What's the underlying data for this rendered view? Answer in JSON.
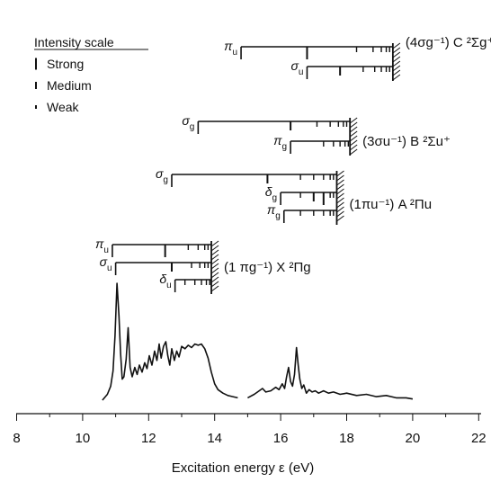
{
  "chart_data": {
    "type": "line",
    "xlabel": "Excitation energy ε (eV)",
    "ylabel": "",
    "title": "",
    "xlim": [
      8,
      22
    ],
    "x_ticks": [
      8,
      10,
      12,
      14,
      16,
      18,
      20,
      22
    ],
    "legend": {
      "title": "Intensity scale",
      "entries": [
        {
          "label": "Strong",
          "mark_height": 3
        },
        {
          "label": "Medium",
          "mark_height": 2
        },
        {
          "label": "Weak",
          "mark_height": 1
        }
      ]
    },
    "states": [
      {
        "label": "(4σg⁻¹) C ²Σg⁺",
        "limit": 19.4,
        "progressions": [
          {
            "label": "πu",
            "start": 14.8,
            "lines": [
              {
                "e": 16.8,
                "s": 3
              },
              {
                "e": 18.3,
                "s": 1
              },
              {
                "e": 18.8,
                "s": 1
              },
              {
                "e": 19.05,
                "s": 1
              },
              {
                "e": 19.2,
                "s": 1
              },
              {
                "e": 19.3,
                "s": 1
              }
            ]
          },
          {
            "label": "σu",
            "start": 16.8,
            "lines": [
              {
                "e": 17.8,
                "s": 2
              },
              {
                "e": 18.5,
                "s": 1
              },
              {
                "e": 18.85,
                "s": 1
              },
              {
                "e": 19.05,
                "s": 1
              },
              {
                "e": 19.2,
                "s": 1
              },
              {
                "e": 19.3,
                "s": 1
              }
            ]
          }
        ]
      },
      {
        "label": "(3σu⁻¹) B ²Σu⁺",
        "limit": 18.1,
        "progressions": [
          {
            "label": "σg",
            "start": 13.5,
            "lines": [
              {
                "e": 16.3,
                "s": 2
              },
              {
                "e": 17.1,
                "s": 1
              },
              {
                "e": 17.5,
                "s": 1
              },
              {
                "e": 17.75,
                "s": 1
              },
              {
                "e": 17.9,
                "s": 1
              },
              {
                "e": 18.0,
                "s": 1
              }
            ]
          },
          {
            "label": "πg",
            "start": 16.3,
            "lines": [
              {
                "e": 17.3,
                "s": 1
              },
              {
                "e": 17.6,
                "s": 1
              },
              {
                "e": 17.8,
                "s": 1
              },
              {
                "e": 17.95,
                "s": 1
              },
              {
                "e": 18.05,
                "s": 1
              }
            ]
          }
        ]
      },
      {
        "label": "(1πu⁻¹) A ²Πu",
        "limit": 17.7,
        "progressions": [
          {
            "label": "σg",
            "start": 12.7,
            "lines": [
              {
                "e": 15.6,
                "s": 2
              },
              {
                "e": 16.6,
                "s": 1
              },
              {
                "e": 17.0,
                "s": 1
              },
              {
                "e": 17.3,
                "s": 1
              },
              {
                "e": 17.5,
                "s": 1
              },
              {
                "e": 17.6,
                "s": 1
              }
            ]
          },
          {
            "label": "δg",
            "start": 16.0,
            "lines": [
              {
                "e": 16.6,
                "s": 1
              },
              {
                "e": 17.0,
                "s": 2
              },
              {
                "e": 17.3,
                "s": 3
              },
              {
                "e": 17.5,
                "s": 1
              },
              {
                "e": 17.6,
                "s": 1
              }
            ]
          },
          {
            "label": "πg",
            "start": 16.1,
            "lines": [
              {
                "e": 16.6,
                "s": 1
              },
              {
                "e": 17.0,
                "s": 1
              },
              {
                "e": 17.3,
                "s": 1
              },
              {
                "e": 17.5,
                "s": 1
              },
              {
                "e": 17.6,
                "s": 1
              }
            ]
          }
        ]
      },
      {
        "label": "(1 πg⁻¹) X ²Πg",
        "limit": 13.9,
        "progressions": [
          {
            "label": "πu",
            "start": 10.9,
            "lines": [
              {
                "e": 12.5,
                "s": 3
              },
              {
                "e": 13.2,
                "s": 1
              },
              {
                "e": 13.5,
                "s": 1
              },
              {
                "e": 13.7,
                "s": 1
              },
              {
                "e": 13.8,
                "s": 1
              }
            ]
          },
          {
            "label": "σu",
            "start": 11.0,
            "lines": [
              {
                "e": 12.7,
                "s": 2
              },
              {
                "e": 13.3,
                "s": 1
              },
              {
                "e": 13.55,
                "s": 1
              },
              {
                "e": 13.7,
                "s": 1
              },
              {
                "e": 13.8,
                "s": 1
              }
            ]
          },
          {
            "label": "δu",
            "start": 12.8,
            "lines": [
              {
                "e": 13.1,
                "s": 1
              },
              {
                "e": 13.4,
                "s": 1
              },
              {
                "e": 13.6,
                "s": 1
              },
              {
                "e": 13.75,
                "s": 1
              },
              {
                "e": 13.85,
                "s": 1
              }
            ]
          }
        ]
      }
    ],
    "series": [
      {
        "points": [
          [
            10.6,
            0.0
          ],
          [
            10.75,
            0.05
          ],
          [
            10.85,
            0.12
          ],
          [
            10.92,
            0.25
          ],
          [
            10.98,
            0.55
          ],
          [
            11.04,
            1.0
          ],
          [
            11.1,
            0.72
          ],
          [
            11.15,
            0.4
          ],
          [
            11.2,
            0.18
          ],
          [
            11.25,
            0.2
          ],
          [
            11.32,
            0.35
          ],
          [
            11.38,
            0.62
          ],
          [
            11.44,
            0.28
          ],
          [
            11.5,
            0.2
          ],
          [
            11.58,
            0.28
          ],
          [
            11.65,
            0.22
          ],
          [
            11.72,
            0.3
          ],
          [
            11.8,
            0.24
          ],
          [
            11.88,
            0.32
          ],
          [
            11.95,
            0.27
          ],
          [
            12.02,
            0.38
          ],
          [
            12.1,
            0.3
          ],
          [
            12.18,
            0.42
          ],
          [
            12.25,
            0.34
          ],
          [
            12.32,
            0.48
          ],
          [
            12.38,
            0.36
          ],
          [
            12.45,
            0.46
          ],
          [
            12.52,
            0.5
          ],
          [
            12.58,
            0.38
          ],
          [
            12.64,
            0.3
          ],
          [
            12.7,
            0.44
          ],
          [
            12.78,
            0.34
          ],
          [
            12.85,
            0.42
          ],
          [
            12.92,
            0.37
          ],
          [
            13.0,
            0.46
          ],
          [
            13.1,
            0.44
          ],
          [
            13.2,
            0.47
          ],
          [
            13.3,
            0.45
          ],
          [
            13.4,
            0.48
          ],
          [
            13.5,
            0.47
          ],
          [
            13.6,
            0.48
          ],
          [
            13.7,
            0.44
          ],
          [
            13.8,
            0.36
          ],
          [
            13.9,
            0.24
          ],
          [
            14.0,
            0.14
          ],
          [
            14.1,
            0.09
          ],
          [
            14.25,
            0.06
          ],
          [
            14.4,
            0.04
          ],
          [
            14.55,
            0.03
          ],
          [
            14.7,
            0.02
          ]
        ]
      },
      {
        "points": [
          [
            15.0,
            0.02
          ],
          [
            15.2,
            0.05
          ],
          [
            15.35,
            0.08
          ],
          [
            15.45,
            0.1
          ],
          [
            15.55,
            0.07
          ],
          [
            15.7,
            0.08
          ],
          [
            15.85,
            0.11
          ],
          [
            15.95,
            0.09
          ],
          [
            16.05,
            0.14
          ],
          [
            16.12,
            0.1
          ],
          [
            16.18,
            0.2
          ],
          [
            16.24,
            0.28
          ],
          [
            16.3,
            0.16
          ],
          [
            16.36,
            0.12
          ],
          [
            16.42,
            0.22
          ],
          [
            16.48,
            0.45
          ],
          [
            16.53,
            0.3
          ],
          [
            16.58,
            0.18
          ],
          [
            16.64,
            0.1
          ],
          [
            16.7,
            0.13
          ],
          [
            16.78,
            0.06
          ],
          [
            16.86,
            0.09
          ],
          [
            16.95,
            0.07
          ],
          [
            17.05,
            0.08
          ],
          [
            17.15,
            0.06
          ],
          [
            17.3,
            0.08
          ],
          [
            17.45,
            0.06
          ],
          [
            17.6,
            0.07
          ],
          [
            17.8,
            0.05
          ],
          [
            18.0,
            0.06
          ],
          [
            18.3,
            0.04
          ],
          [
            18.6,
            0.05
          ],
          [
            18.9,
            0.03
          ],
          [
            19.2,
            0.04
          ],
          [
            19.5,
            0.02
          ],
          [
            19.8,
            0.02
          ],
          [
            20.0,
            0.01
          ]
        ]
      }
    ]
  }
}
